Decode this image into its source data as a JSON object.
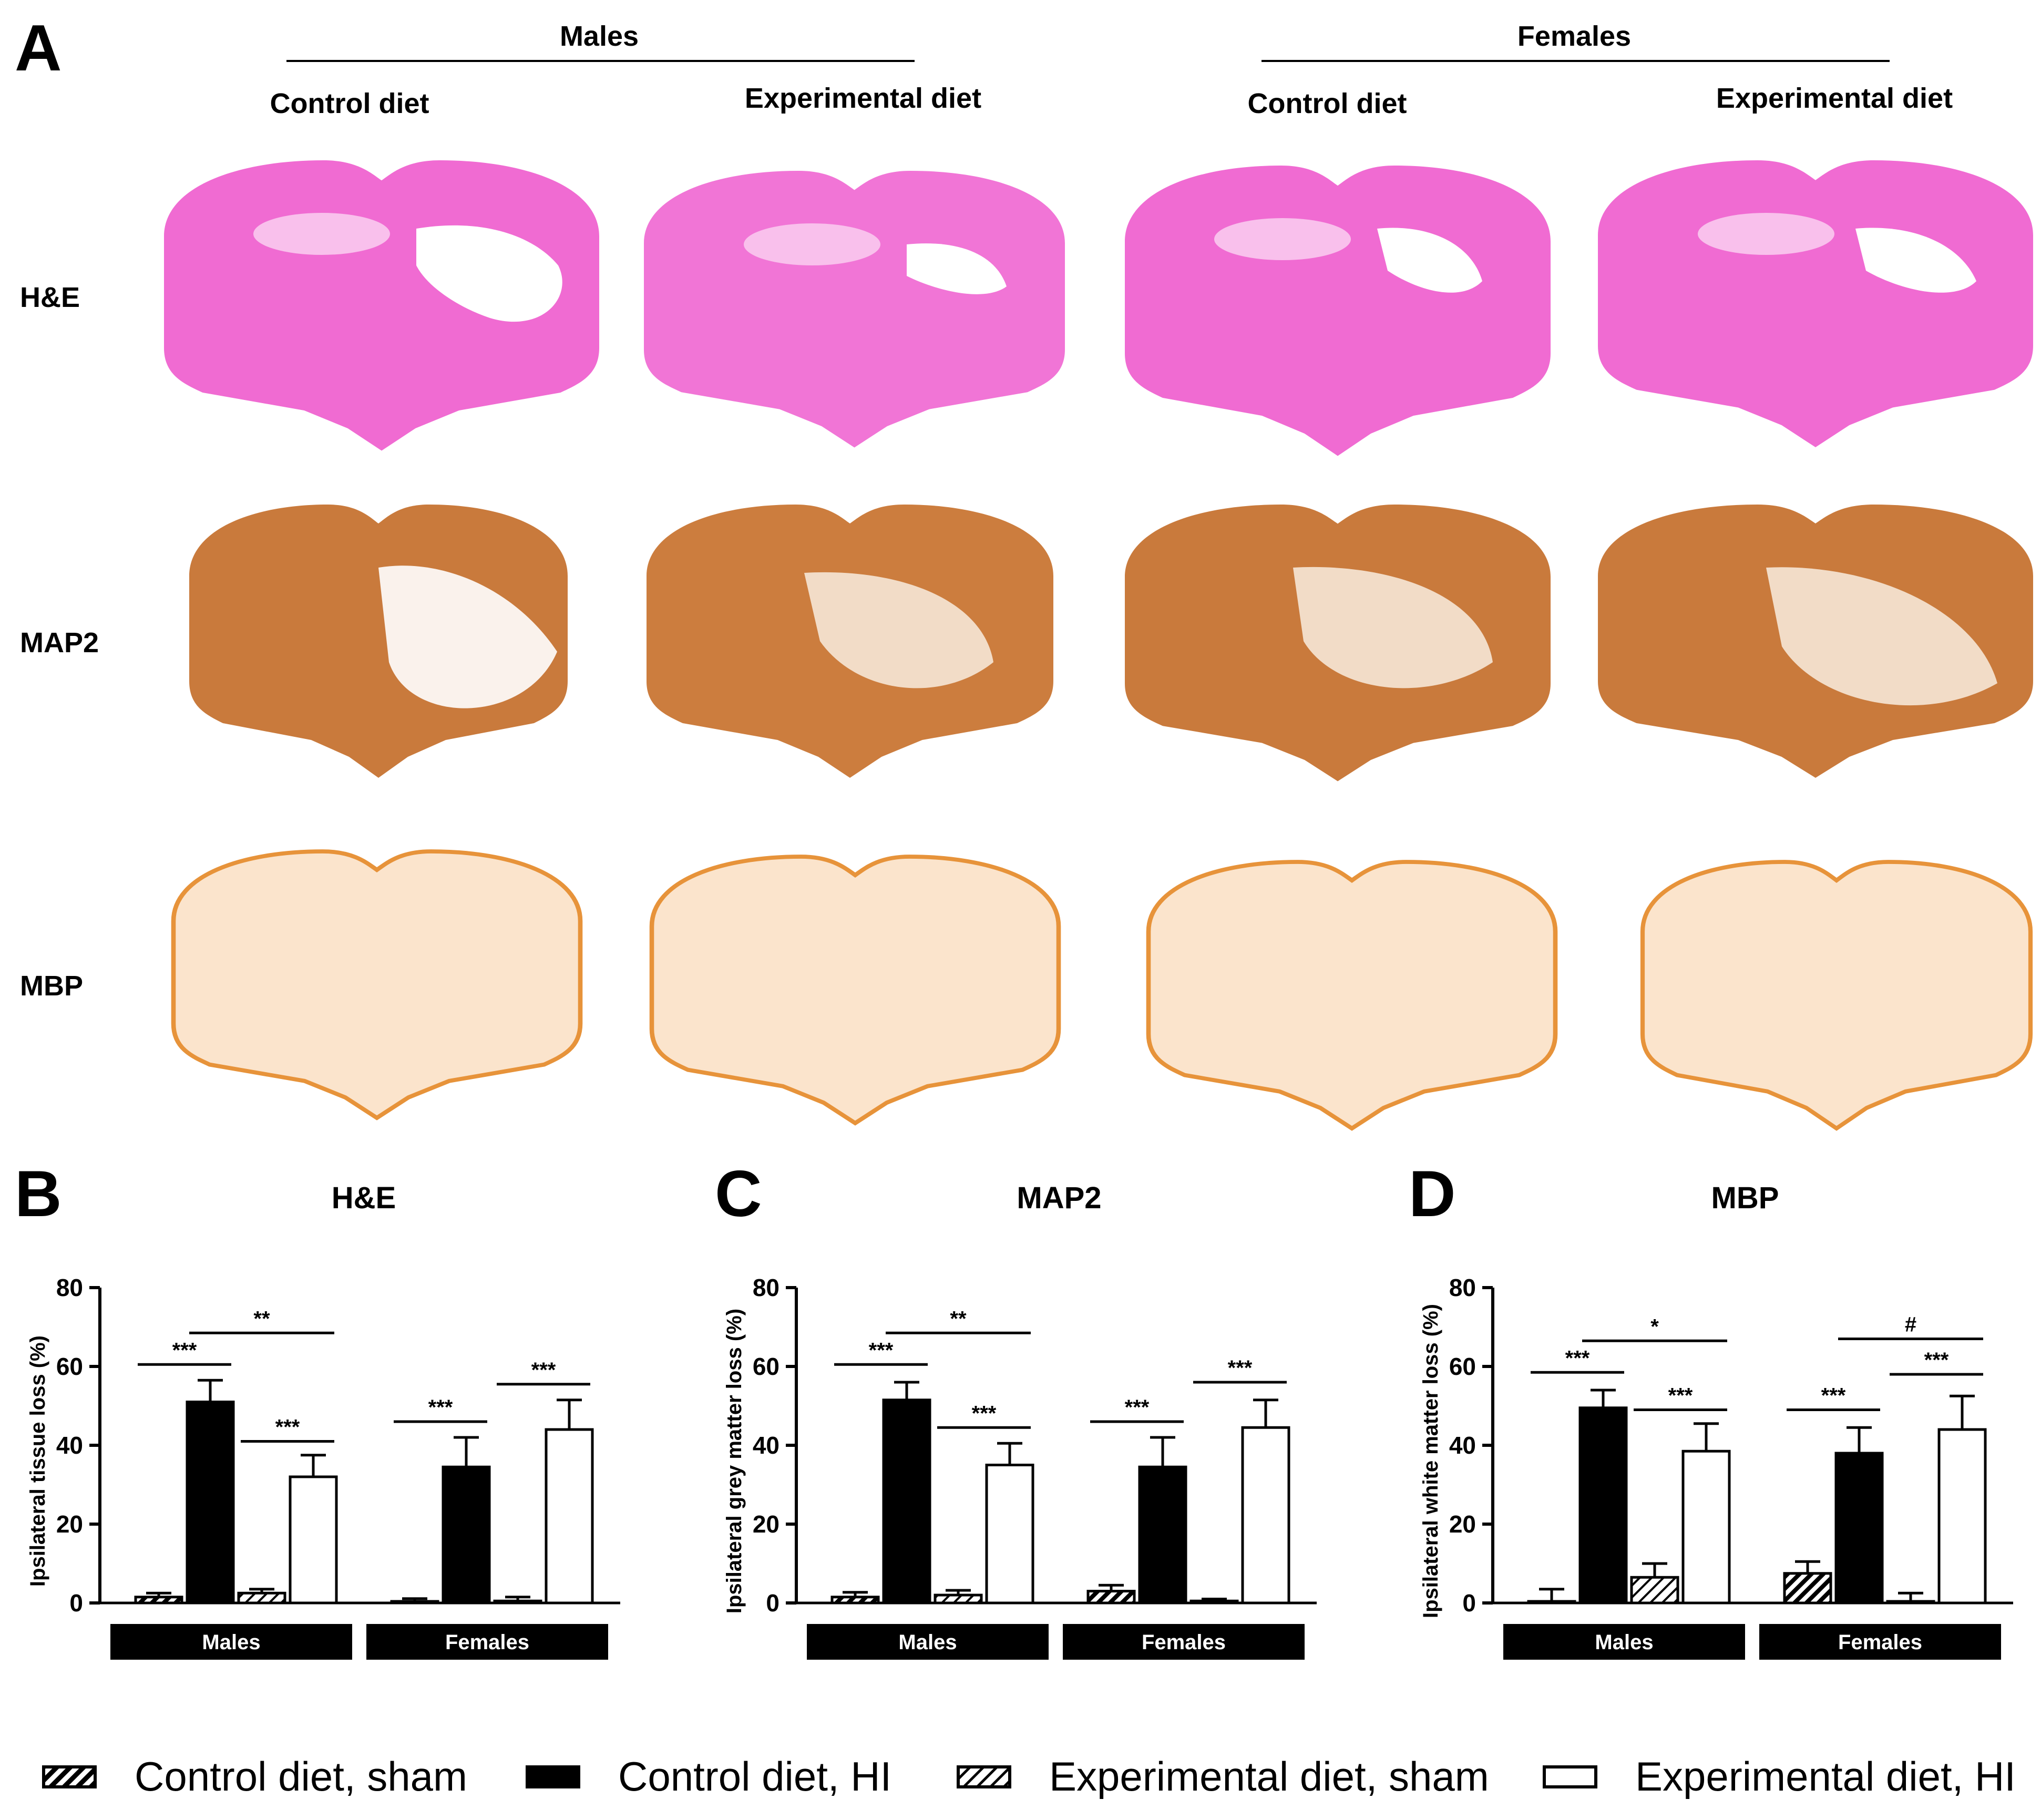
{
  "panel_a": {
    "letter": "A",
    "groups": [
      "Males",
      "Females"
    ],
    "columns": [
      "Control diet",
      "Experimental diet",
      "Control diet",
      "Experimental diet"
    ],
    "rows": [
      "H&E",
      "MAP2",
      "MBP"
    ],
    "stain_colors": {
      "H&E": "#f06bd2",
      "MAP2": "#c97a3c",
      "MBP": "#e7933a"
    }
  },
  "legend": {
    "items": [
      {
        "label": "Control diet, sham",
        "fill": "hatch"
      },
      {
        "label": "Control diet, HI",
        "fill": "#000000"
      },
      {
        "label": "Experimental diet, sham",
        "fill": "hatch"
      },
      {
        "label": "Experimental diet, HI",
        "fill": "#ffffff"
      }
    ]
  },
  "chart_data": [
    {
      "letter": "B",
      "type": "bar",
      "title": "H&E",
      "ylabel": "Ipsilateral tissue loss (%)",
      "ylim": [
        0,
        80
      ],
      "yticks": [
        0,
        20,
        40,
        60,
        80
      ],
      "groups": [
        "Males",
        "Females"
      ],
      "series": [
        {
          "name": "Control diet, sham",
          "values": [
            1.5,
            0.3
          ],
          "errors": [
            1.0,
            0.8
          ]
        },
        {
          "name": "Control diet, HI",
          "values": [
            51,
            34.5
          ],
          "errors": [
            5.5,
            7.5
          ]
        },
        {
          "name": "Experimental diet, sham",
          "values": [
            2.5,
            0.5
          ],
          "errors": [
            1.0,
            1.0
          ]
        },
        {
          "name": "Experimental diet, HI",
          "values": [
            32,
            44
          ],
          "errors": [
            5.5,
            7.5
          ]
        }
      ],
      "annotations": [
        {
          "label": "***",
          "from": [
            0,
            0
          ],
          "to": [
            0,
            1
          ],
          "y": 60.5
        },
        {
          "label": "**",
          "from": [
            0,
            1
          ],
          "to": [
            0,
            3
          ],
          "y": 68.5
        },
        {
          "label": "***",
          "from": [
            0,
            2
          ],
          "to": [
            0,
            3
          ],
          "y": 41
        },
        {
          "label": "***",
          "from": [
            1,
            0
          ],
          "to": [
            1,
            1
          ],
          "y": 46
        },
        {
          "label": "***",
          "from": [
            1,
            2
          ],
          "to": [
            1,
            3
          ],
          "y": 55.5
        }
      ]
    },
    {
      "letter": "C",
      "type": "bar",
      "title": "MAP2",
      "ylabel": "Ipsilateral grey matter loss (%)",
      "ylim": [
        0,
        80
      ],
      "yticks": [
        0,
        20,
        40,
        60,
        80
      ],
      "groups": [
        "Males",
        "Females"
      ],
      "series": [
        {
          "name": "Control diet, sham",
          "values": [
            1.5,
            3.0
          ],
          "errors": [
            1.2,
            1.5
          ]
        },
        {
          "name": "Control diet, HI",
          "values": [
            51.5,
            34.5
          ],
          "errors": [
            4.5,
            7.5
          ]
        },
        {
          "name": "Experimental diet, sham",
          "values": [
            2.0,
            0.5
          ],
          "errors": [
            1.2,
            0.5
          ]
        },
        {
          "name": "Experimental diet, HI",
          "values": [
            35,
            44.5
          ],
          "errors": [
            5.5,
            7.0
          ]
        }
      ],
      "annotations": [
        {
          "label": "***",
          "from": [
            0,
            0
          ],
          "to": [
            0,
            1
          ],
          "y": 60.5
        },
        {
          "label": "**",
          "from": [
            0,
            1
          ],
          "to": [
            0,
            3
          ],
          "y": 68.5
        },
        {
          "label": "***",
          "from": [
            0,
            2
          ],
          "to": [
            0,
            3
          ],
          "y": 44.5
        },
        {
          "label": "***",
          "from": [
            1,
            0
          ],
          "to": [
            1,
            1
          ],
          "y": 46
        },
        {
          "label": "***",
          "from": [
            1,
            2
          ],
          "to": [
            1,
            3
          ],
          "y": 56
        }
      ]
    },
    {
      "letter": "D",
      "type": "bar",
      "title": "MBP",
      "ylabel": "Ipsilateral white matter loss (%)",
      "ylim": [
        0,
        80
      ],
      "yticks": [
        0,
        20,
        40,
        60,
        80
      ],
      "groups": [
        "Males",
        "Females"
      ],
      "series": [
        {
          "name": "Control diet, sham",
          "values": [
            0,
            7.5
          ],
          "errors": [
            3.5,
            3.0
          ]
        },
        {
          "name": "Control diet, HI",
          "values": [
            49.5,
            38
          ],
          "errors": [
            4.5,
            6.5
          ]
        },
        {
          "name": "Experimental diet, sham",
          "values": [
            6.5,
            0
          ],
          "errors": [
            3.5,
            2.5
          ]
        },
        {
          "name": "Experimental diet, HI",
          "values": [
            38.5,
            44
          ],
          "errors": [
            7.0,
            8.5
          ]
        }
      ],
      "annotations": [
        {
          "label": "***",
          "from": [
            0,
            0
          ],
          "to": [
            0,
            1
          ],
          "y": 58.5
        },
        {
          "label": "*",
          "from": [
            0,
            1
          ],
          "to": [
            0,
            3
          ],
          "y": 66.5
        },
        {
          "label": "***",
          "from": [
            0,
            2
          ],
          "to": [
            0,
            3
          ],
          "y": 49
        },
        {
          "label": "***",
          "from": [
            1,
            0
          ],
          "to": [
            1,
            1
          ],
          "y": 49
        },
        {
          "label": "#",
          "from": [
            1,
            1
          ],
          "to": [
            1,
            3
          ],
          "y": 67
        },
        {
          "label": "***",
          "from": [
            1,
            2
          ],
          "to": [
            1,
            3
          ],
          "y": 58
        }
      ]
    }
  ]
}
